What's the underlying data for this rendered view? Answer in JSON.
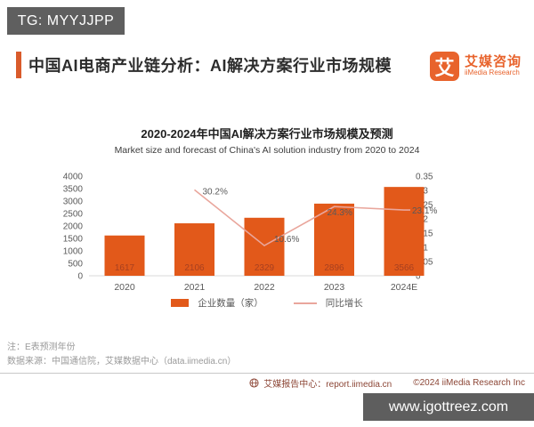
{
  "watermark_top": {
    "label": "TG: MYYJJPP"
  },
  "header": {
    "title": "中国AI电商产业链分析：AI解决方案行业市场规模",
    "logo": {
      "symbol": "艾",
      "name_cn": "艾媒咨询",
      "name_en": "iiMedia Research",
      "color": "#e8632c"
    }
  },
  "chart": {
    "title": "2020-2024年中国AI解决方案行业市场规模及预测",
    "subtitle": "Market size and forecast of China's AI solution industry from 2020 to 2024"
  },
  "chart_data": {
    "type": "bar",
    "categories": [
      "2020",
      "2021",
      "2022",
      "2023",
      "2024E"
    ],
    "series": [
      {
        "name": "企业数量（家）",
        "type": "bar",
        "axis": "left",
        "color": "#e2591a",
        "values": [
          1617,
          2106,
          2329,
          2896,
          3566
        ]
      },
      {
        "name": "同比增长",
        "type": "line",
        "axis": "right",
        "color": "#e9a69c",
        "values": [
          null,
          0.302,
          0.106,
          0.243,
          0.231
        ],
        "labels": [
          "",
          "30.2%",
          "10.6%",
          "24.3%",
          "23.1%"
        ]
      }
    ],
    "left_axis": {
      "min": 0,
      "max": 4000,
      "step": 500,
      "ticks": [
        "0",
        "500",
        "1000",
        "1500",
        "2000",
        "2500",
        "3000",
        "3500",
        "4000"
      ]
    },
    "right_axis": {
      "min": 0,
      "max": 0.35,
      "step": 0.05,
      "ticks": [
        "0",
        "0.05",
        "0.1",
        "0.15",
        "0.2",
        "0.25",
        "0.3",
        "0.35"
      ]
    },
    "legend_position": "bottom",
    "grid": false,
    "bar_value_color": "#a84020",
    "axis_text_color": "#595959"
  },
  "notes": {
    "note1": "注：E表预测年份",
    "note2": "数据来源：中国通信院，艾媒数据中心（data.iimedia.cn）"
  },
  "footer": {
    "report_center": "艾媒报告中心：report.iimedia.cn",
    "copyright": "©2024  iiMedia Research  Inc"
  },
  "watermark_bottom": {
    "label": "www.igottreez.com"
  }
}
